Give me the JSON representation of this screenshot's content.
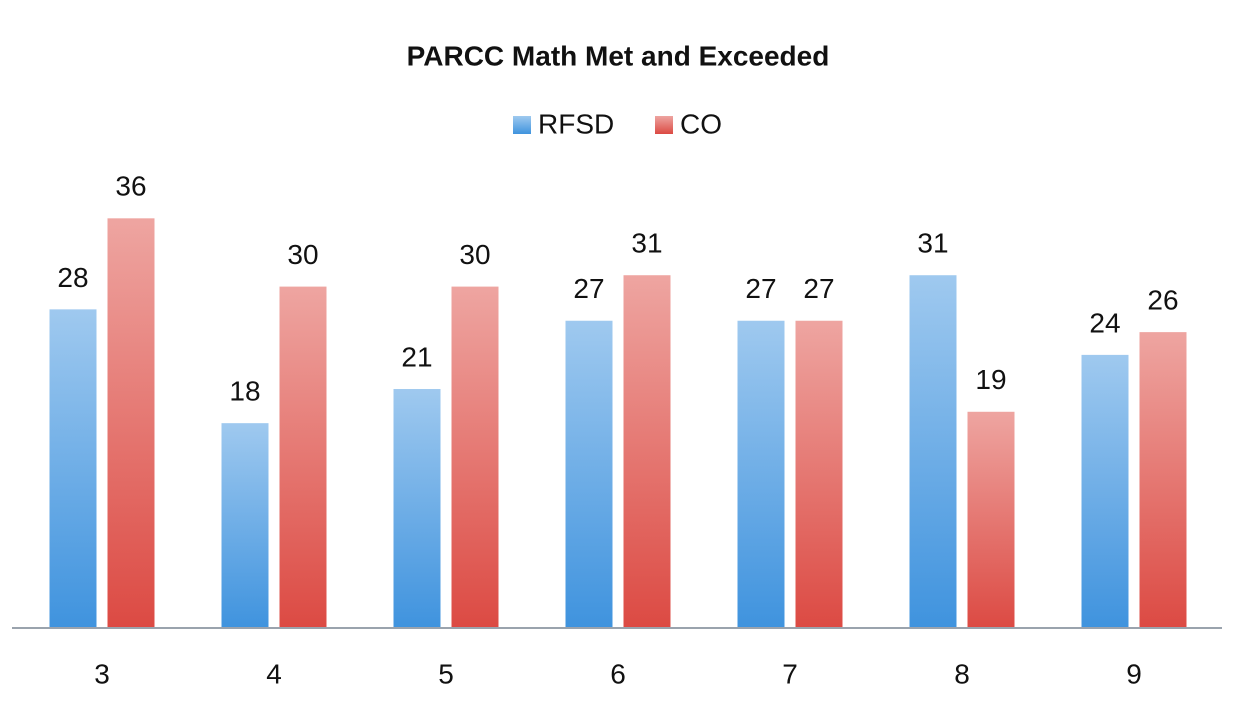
{
  "chart_data": {
    "type": "bar",
    "title": "PARCC Math Met and Exceeded",
    "categories": [
      "3",
      "4",
      "5",
      "6",
      "7",
      "8",
      "9"
    ],
    "series": [
      {
        "name": "RFSD",
        "color": "#3f93de",
        "values": [
          28,
          18,
          21,
          27,
          27,
          31,
          24
        ]
      },
      {
        "name": "CO",
        "color": "#dc4a43",
        "values": [
          36,
          30,
          30,
          31,
          27,
          19,
          26
        ]
      }
    ],
    "legend": "top"
  }
}
